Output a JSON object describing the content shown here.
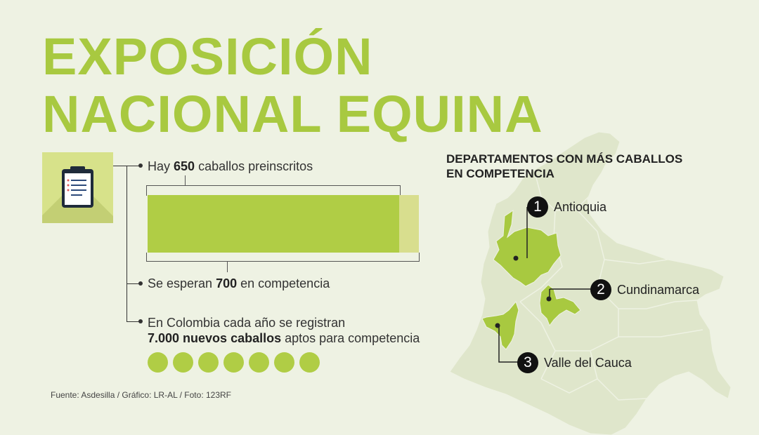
{
  "title": {
    "line1": "EXPOSICIÓN",
    "line2": "NACIONAL EQUINA"
  },
  "stats": {
    "preregistered": {
      "pre": "Hay ",
      "value": "650",
      "post": " caballos preinscritos"
    },
    "expected": {
      "pre": "Se esperan ",
      "value": "700",
      "post": " en competencia"
    },
    "registered": {
      "line1": "En Colombia cada año se registran",
      "value": "7.000 nuevos caballos",
      "post": " aptos para competencia"
    }
  },
  "bar": {
    "preregistered": 650,
    "expected": 700
  },
  "horses_circles": 7,
  "colors": {
    "accent": "#a8c940",
    "bar": "#b0cd45",
    "bar_light": "#d8de8e",
    "map": "#dfe6cb",
    "highlight": "#a8c940"
  },
  "map": {
    "title_line1": "DEPARTAMENTOS CON MÁS CABALLOS",
    "title_line2": "EN COMPETENCIA",
    "ranks": [
      {
        "num": "1",
        "name": "Antioquia"
      },
      {
        "num": "2",
        "name": "Cundinamarca"
      },
      {
        "num": "3",
        "name": "Valle del Cauca"
      }
    ]
  },
  "icon": "clipboard-icon",
  "source": "Fuente: Asdesilla / Gráfico: LR-AL / Foto: 123RF"
}
